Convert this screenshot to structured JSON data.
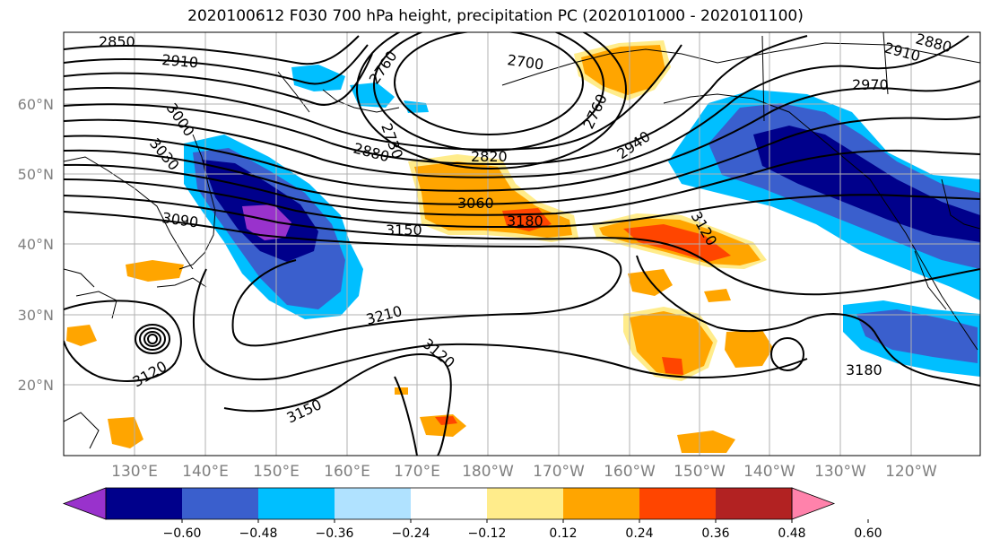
{
  "title": "2020100612 F030 700 hPa height, precipitation PC (2020101000 - 2020101100)",
  "map": {
    "lat_labels": [
      "60°N",
      "50°N",
      "40°N",
      "30°N",
      "20°N"
    ],
    "lon_labels": [
      "130°E",
      "140°E",
      "150°E",
      "160°E",
      "170°E",
      "180°W",
      "170°W",
      "160°W",
      "150°W",
      "140°W",
      "130°W",
      "120°W"
    ],
    "contour_labels": [
      "2850",
      "2910",
      "3000",
      "3030",
      "3090",
      "2760",
      "2700",
      "2730",
      "2760",
      "2820",
      "2880",
      "2940",
      "2910",
      "2880",
      "2970",
      "3060",
      "3180",
      "3150",
      "3120",
      "3210",
      "3120",
      "3120",
      "3150",
      "3180"
    ]
  },
  "colorbar": {
    "ticks": [
      "−0.60",
      "−0.48",
      "−0.36",
      "−0.24",
      "−0.12",
      "0.12",
      "0.24",
      "0.36",
      "0.48",
      "0.60"
    ],
    "colors": [
      "#9932cc",
      "#00008b",
      "#3a5fcd",
      "#00bfff",
      "#b0e2ff",
      "#ffffff",
      "#ffec8b",
      "#ffa500",
      "#ff4500",
      "#b22222",
      "#ff82ab"
    ]
  }
}
